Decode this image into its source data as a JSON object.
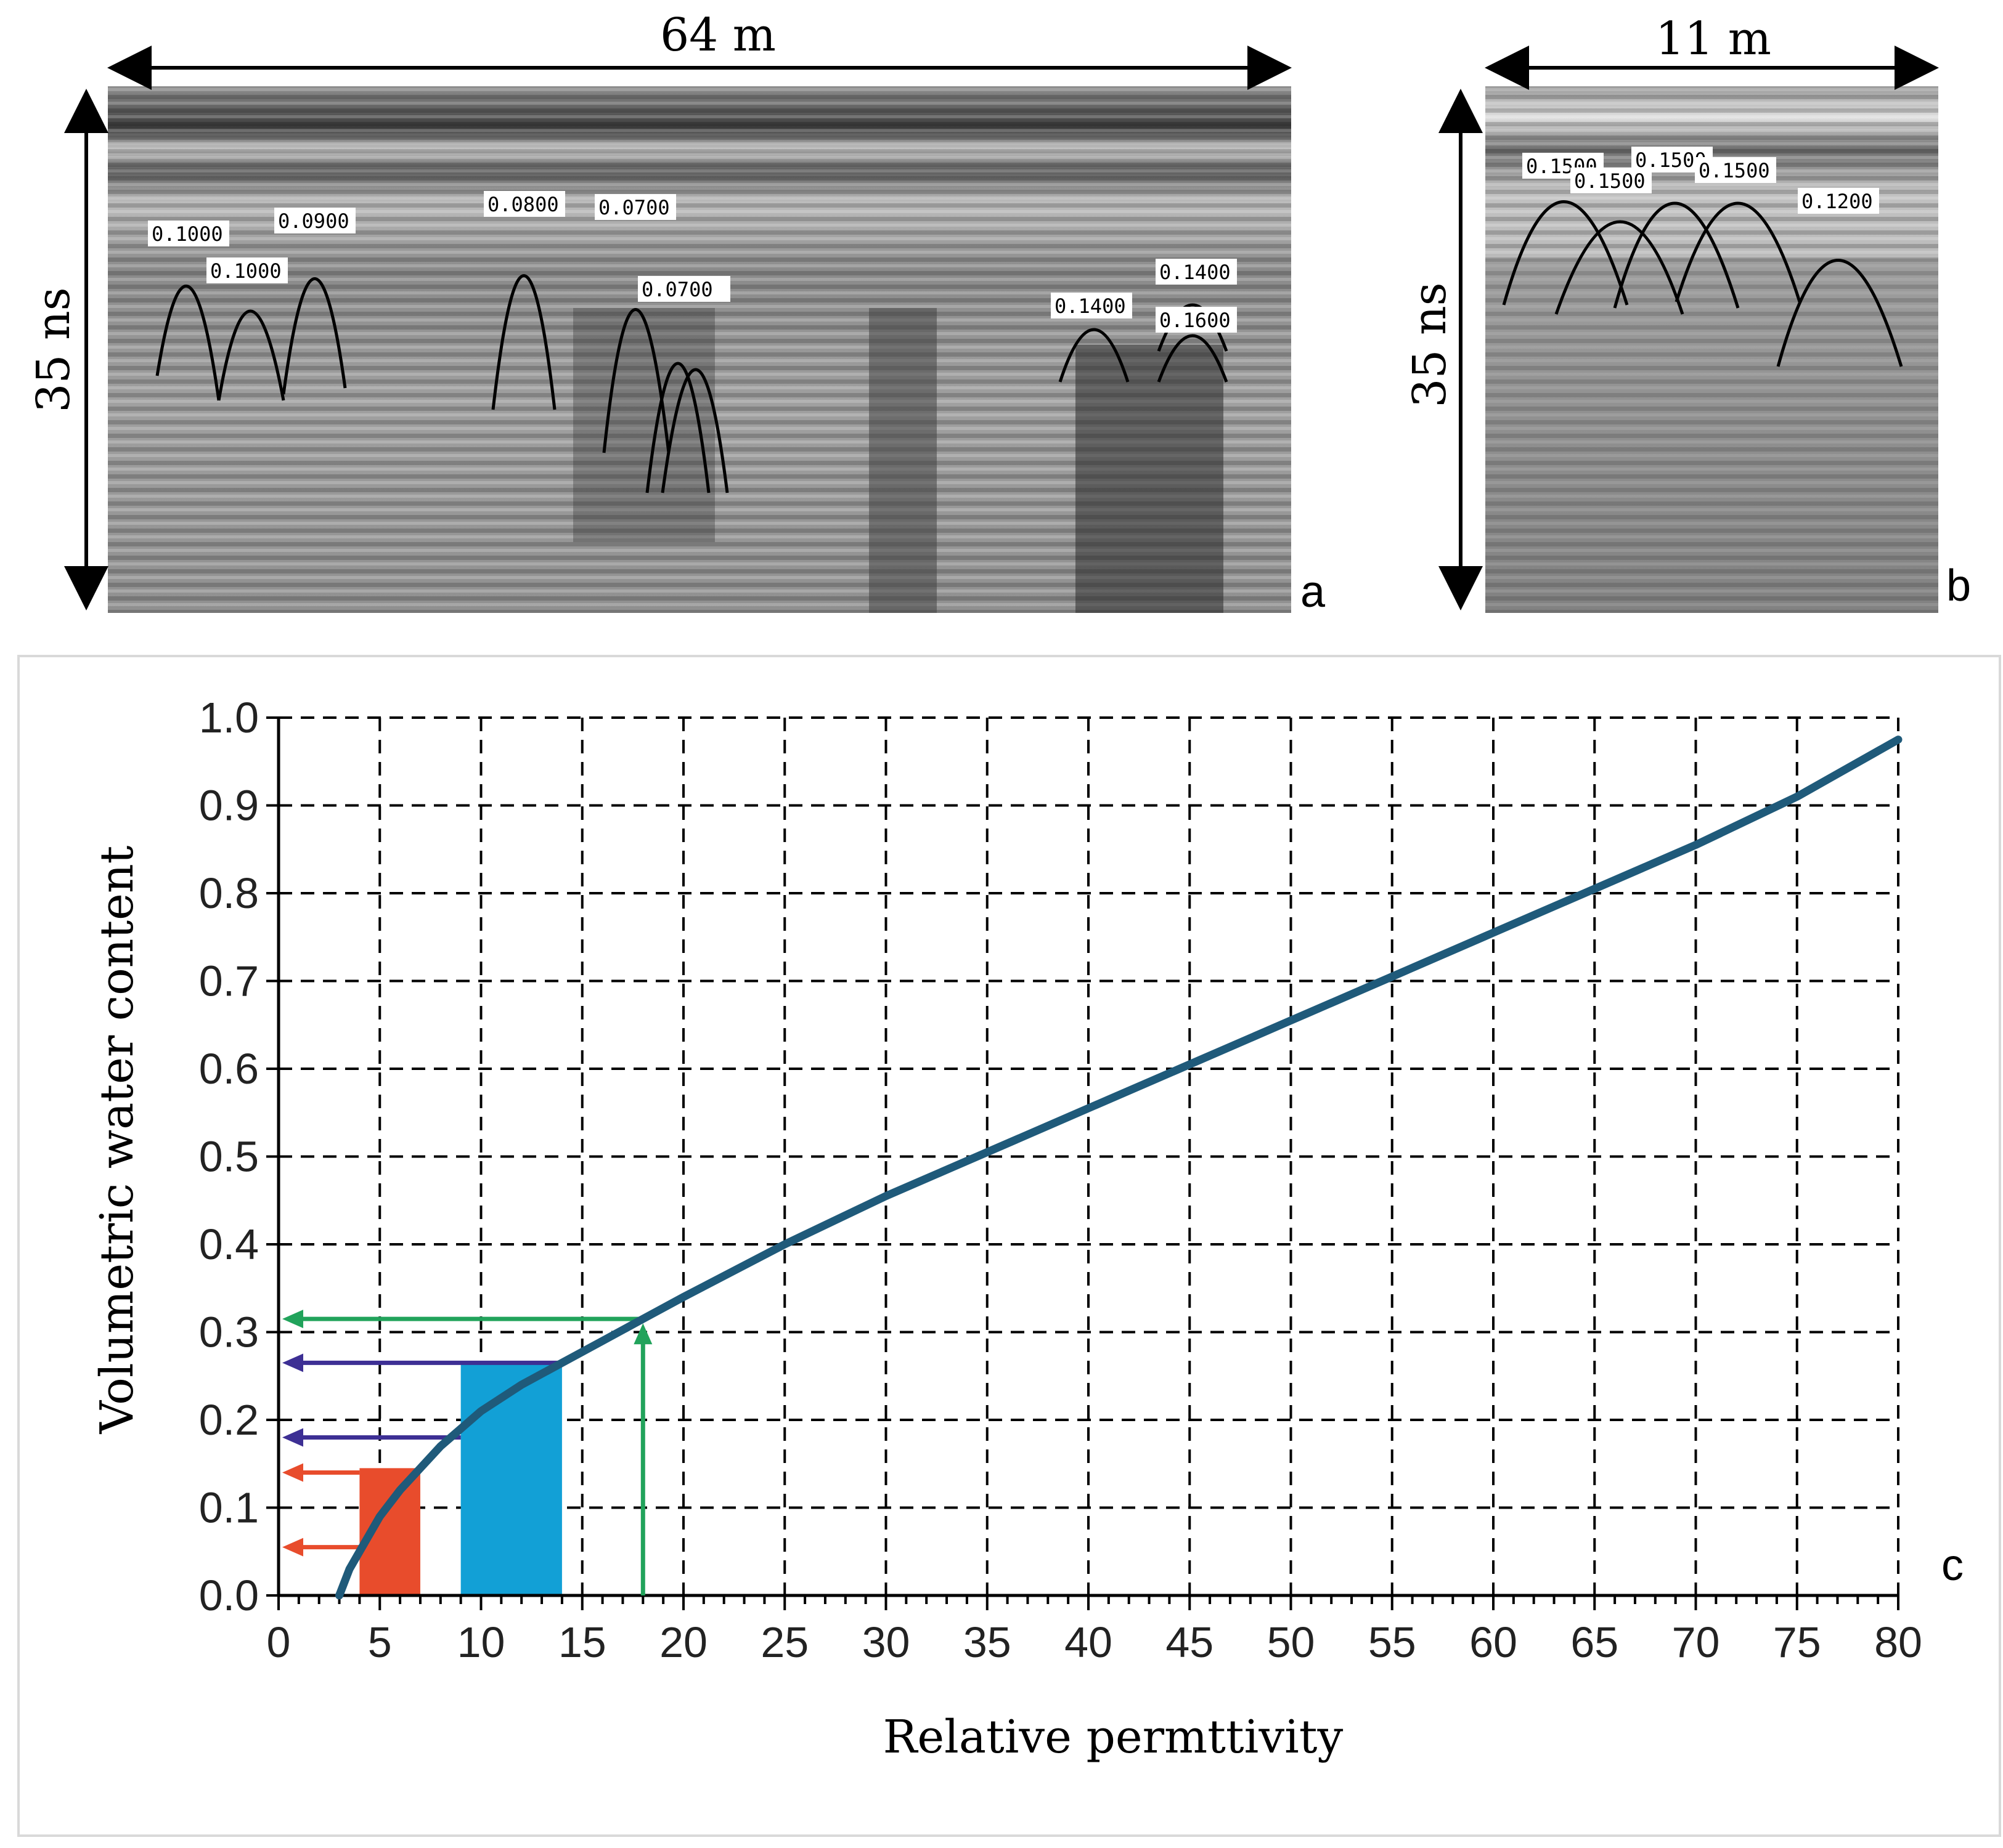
{
  "panel_a": {
    "letter": "a",
    "width_label": "64 m",
    "height_label": "35 ns",
    "hyperbola_labels": [
      "0.1000",
      "0.1000",
      "0.0900",
      "0.0800",
      "0.0700",
      "0.0700",
      "0.1400",
      "0.1400",
      "0.1600"
    ]
  },
  "panel_b": {
    "letter": "b",
    "width_label": "11 m",
    "height_label": "35 ns",
    "hyperbola_labels": [
      "0.1500",
      "0.1500",
      "0.1500",
      "0.1500",
      "0.1200"
    ]
  },
  "chart_data": {
    "type": "line",
    "panel_letter": "c",
    "xlabel": "Relative permttivity",
    "ylabel": "Volumetric water content",
    "xlim": [
      0,
      80
    ],
    "ylim": [
      0.0,
      1.0
    ],
    "x_ticks": [
      "0",
      "5",
      "10",
      "15",
      "20",
      "25",
      "30",
      "35",
      "40",
      "45",
      "50",
      "55",
      "60",
      "65",
      "70",
      "75",
      "80"
    ],
    "y_ticks": [
      "0.0",
      "0.1",
      "0.2",
      "0.3",
      "0.4",
      "0.5",
      "0.6",
      "0.7",
      "0.8",
      "0.9",
      "1.0"
    ],
    "grid": "dashed",
    "series": [
      {
        "color": "#1f5a7a",
        "x": [
          3,
          3.5,
          4,
          5,
          6,
          7,
          8,
          9,
          10,
          12,
          14,
          16,
          18,
          20,
          25,
          30,
          35,
          40,
          45,
          50,
          55,
          60,
          65,
          70,
          75,
          80
        ],
        "y": [
          0.0,
          0.03,
          0.05,
          0.09,
          0.12,
          0.145,
          0.17,
          0.19,
          0.21,
          0.24,
          0.265,
          0.29,
          0.315,
          0.34,
          0.4,
          0.455,
          0.505,
          0.555,
          0.605,
          0.655,
          0.705,
          0.755,
          0.805,
          0.855,
          0.91,
          0.975
        ]
      }
    ],
    "shaded_ranges": [
      {
        "color": "#e84c2c",
        "x": [
          4,
          7
        ],
        "y_top": 0.145
      },
      {
        "color": "#12a0d6",
        "x": [
          9,
          14
        ],
        "y_top": 0.265
      }
    ],
    "arrows": [
      {
        "color": "#e84c2c",
        "y": 0.055,
        "from_x": 4
      },
      {
        "color": "#e84c2c",
        "y": 0.14,
        "from_x": 4
      },
      {
        "color": "#3d2f94",
        "y": 0.18,
        "from_x": 9
      },
      {
        "color": "#3d2f94",
        "y": 0.265,
        "from_x": 14
      },
      {
        "color": "#21a35b",
        "y": 0.315,
        "from_x": 18
      }
    ],
    "vertical_arrow": {
      "color": "#21a35b",
      "x": 18,
      "y_top": 0.31
    }
  }
}
